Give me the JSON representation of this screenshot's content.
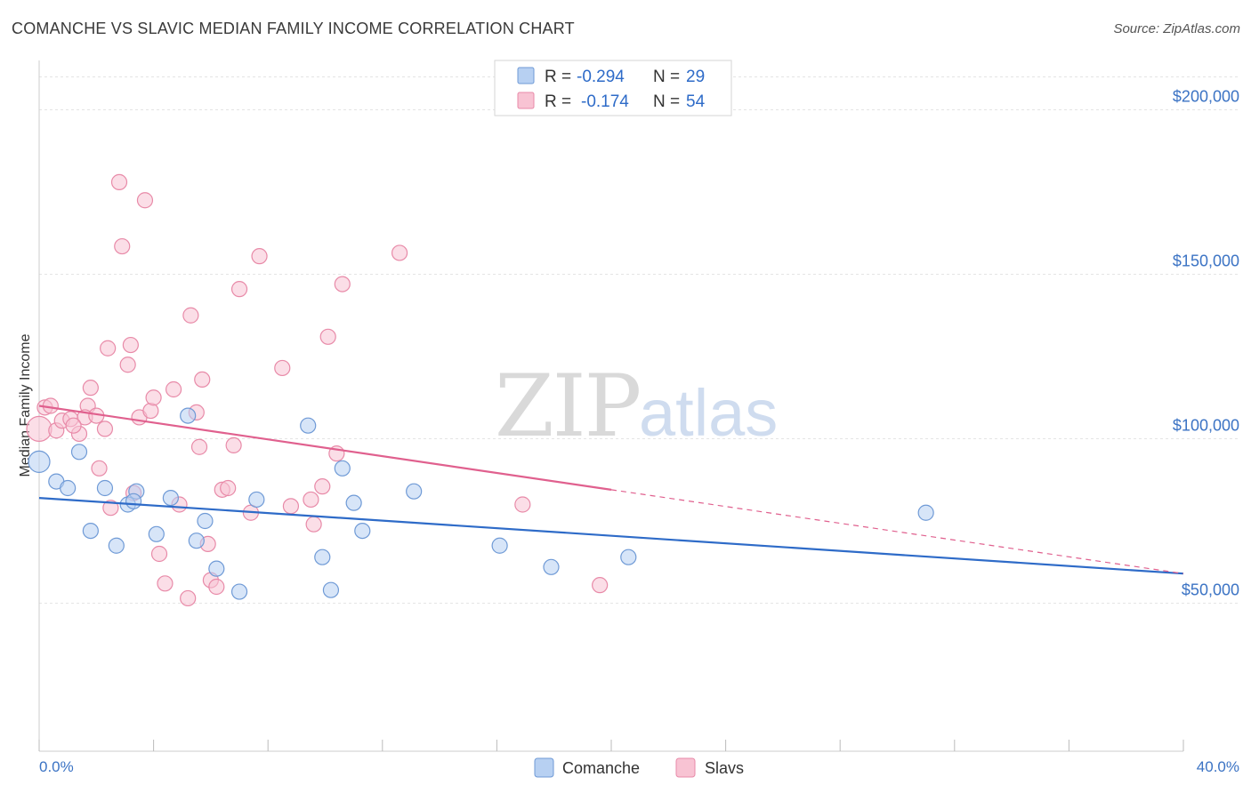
{
  "header": {
    "title": "COMANCHE VS SLAVIC MEDIAN FAMILY INCOME CORRELATION CHART",
    "source": "Source: ZipAtlas.com"
  },
  "watermark": {
    "zip": "ZIP",
    "atlas": "atlas"
  },
  "colors": {
    "comanche_fill": "#b7d0f2",
    "comanche_stroke": "#6f9ad6",
    "comanche_line": "#2e6bc8",
    "slavs_fill": "#f8c3d3",
    "slavs_stroke": "#e88aa8",
    "slavs_line": "#e0608e",
    "axis_text": "#3b73c4",
    "grid": "#e4e4e4"
  },
  "legend": {
    "rows": [
      {
        "r_label": "R =",
        "r_value": "-0.294",
        "n_label": "N =",
        "n_value": "29"
      },
      {
        "r_label": "R =",
        "r_value": "-0.174",
        "n_label": "N =",
        "n_value": "54"
      }
    ]
  },
  "chart_data": {
    "type": "scatter",
    "title": "COMANCHE VS SLAVIC MEDIAN FAMILY INCOME CORRELATION CHART",
    "xlabel": "",
    "ylabel": "Median Family Income",
    "xlim": [
      0,
      40
    ],
    "ylim": [
      5000,
      215000
    ],
    "x_tick_labels": {
      "left": "0.0%",
      "right": "40.0%"
    },
    "y_ticks": [
      {
        "value": 50000,
        "label": "$50,000"
      },
      {
        "value": 100000,
        "label": "$100,000"
      },
      {
        "value": 150000,
        "label": "$150,000"
      },
      {
        "value": 200000,
        "label": "$200,000"
      }
    ],
    "grid": true,
    "legend_position": "bottom-center",
    "series": [
      {
        "name": "Comanche",
        "R": -0.294,
        "N": 29,
        "trend": {
          "x0": 0,
          "y0": 82000,
          "x1": 40,
          "y1": 59000
        },
        "points": [
          [
            0.0,
            93000
          ],
          [
            0.6,
            87000
          ],
          [
            1.0,
            85000
          ],
          [
            1.4,
            96000
          ],
          [
            1.8,
            72000
          ],
          [
            2.3,
            85000
          ],
          [
            2.7,
            67500
          ],
          [
            3.1,
            80000
          ],
          [
            3.4,
            84000
          ],
          [
            4.1,
            71000
          ],
          [
            4.6,
            82000
          ],
          [
            5.2,
            107000
          ],
          [
            5.5,
            69000
          ],
          [
            5.8,
            75000
          ],
          [
            6.2,
            60500
          ],
          [
            7.0,
            53500
          ],
          [
            7.6,
            81500
          ],
          [
            9.4,
            104000
          ],
          [
            9.9,
            64000
          ],
          [
            10.2,
            54000
          ],
          [
            10.6,
            91000
          ],
          [
            11.0,
            80500
          ],
          [
            11.3,
            72000
          ],
          [
            13.1,
            84000
          ],
          [
            16.1,
            67500
          ],
          [
            17.9,
            61000
          ],
          [
            20.6,
            64000
          ],
          [
            31.0,
            77500
          ],
          [
            3.3,
            81000
          ]
        ]
      },
      {
        "name": "Slavs",
        "R": -0.174,
        "N": 54,
        "trend": {
          "x0": 0,
          "y0": 110000,
          "x1": 20,
          "y1": 84500
        },
        "trend_extension": {
          "x0": 20,
          "y0": 84500,
          "x1": 40,
          "y1": 59000
        },
        "points": [
          [
            0.0,
            103000
          ],
          [
            0.2,
            109500
          ],
          [
            0.4,
            110000
          ],
          [
            0.6,
            102500
          ],
          [
            0.8,
            105500
          ],
          [
            1.1,
            106000
          ],
          [
            1.4,
            101500
          ],
          [
            1.7,
            110000
          ],
          [
            1.8,
            115500
          ],
          [
            1.6,
            106500
          ],
          [
            2.0,
            107000
          ],
          [
            2.1,
            91000
          ],
          [
            2.3,
            103000
          ],
          [
            2.4,
            127500
          ],
          [
            2.5,
            79000
          ],
          [
            2.8,
            178000
          ],
          [
            2.9,
            158500
          ],
          [
            3.1,
            122500
          ],
          [
            3.2,
            128500
          ],
          [
            3.3,
            83500
          ],
          [
            3.5,
            106500
          ],
          [
            3.7,
            172500
          ],
          [
            3.9,
            108500
          ],
          [
            4.0,
            112500
          ],
          [
            4.2,
            65000
          ],
          [
            4.4,
            56000
          ],
          [
            4.7,
            115000
          ],
          [
            4.9,
            80000
          ],
          [
            5.2,
            51500
          ],
          [
            5.3,
            137500
          ],
          [
            5.5,
            108000
          ],
          [
            5.7,
            118000
          ],
          [
            5.6,
            97500
          ],
          [
            5.9,
            68000
          ],
          [
            6.0,
            57000
          ],
          [
            6.2,
            55000
          ],
          [
            6.4,
            84500
          ],
          [
            6.6,
            85000
          ],
          [
            6.8,
            98000
          ],
          [
            7.0,
            145500
          ],
          [
            7.4,
            77500
          ],
          [
            7.7,
            155500
          ],
          [
            8.5,
            121500
          ],
          [
            8.8,
            79500
          ],
          [
            9.5,
            81500
          ],
          [
            9.6,
            74000
          ],
          [
            9.9,
            85500
          ],
          [
            10.1,
            131000
          ],
          [
            10.4,
            95500
          ],
          [
            10.6,
            147000
          ],
          [
            12.6,
            156500
          ],
          [
            16.9,
            80000
          ],
          [
            19.6,
            55500
          ],
          [
            1.2,
            104000
          ]
        ]
      }
    ]
  },
  "bottom_legend": {
    "comanche": "Comanche",
    "slavs": "Slavs"
  }
}
